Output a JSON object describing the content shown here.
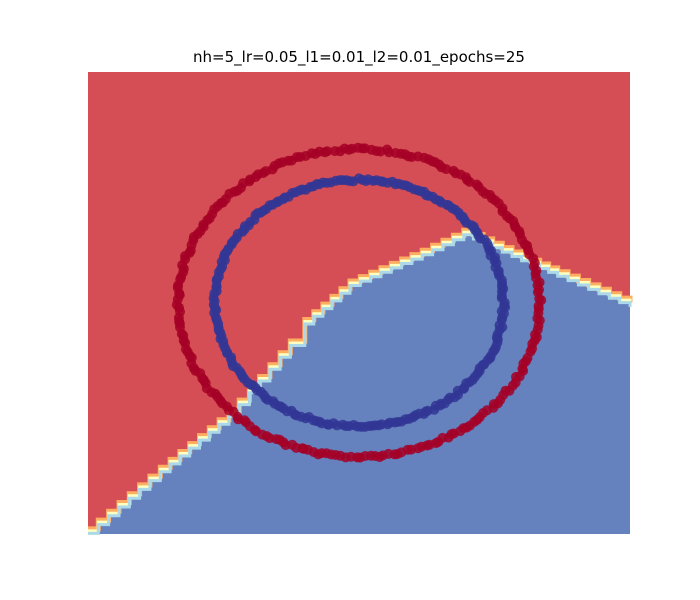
{
  "chart_data": {
    "type": "scatter",
    "title": "nh=5_lr=0.05_l1=0.01_l2=0.01_epochs=25",
    "xlabel": "",
    "ylabel": "",
    "axes_visible": false,
    "grid": false,
    "xlim": [
      -1.5,
      1.5
    ],
    "ylim": [
      -1.5,
      1.5
    ],
    "colors": {
      "region_positive": "#d64e55",
      "region_negative": "#6581be",
      "outer_points": "#a50026",
      "inner_points": "#313695",
      "boundary_band": [
        "#fdae61",
        "#ffffbf",
        "#abd9e9"
      ]
    },
    "decision_boundary": [
      [
        -1.5,
        -1.48
      ],
      [
        -1.1,
        -1.08
      ],
      [
        -0.72,
        -0.72
      ],
      [
        -0.38,
        -0.26
      ],
      [
        -0.3,
        -0.12
      ],
      [
        -0.05,
        0.13
      ],
      [
        0.35,
        0.33
      ],
      [
        0.58,
        0.46
      ],
      [
        0.9,
        0.29
      ],
      [
        1.1,
        0.19
      ],
      [
        1.5,
        -0.01
      ]
    ],
    "series": [
      {
        "name": "",
        "radius": 1.0,
        "color": "#a50026",
        "n_points": 240
      },
      {
        "name": "",
        "radius": 0.8,
        "color": "#313695",
        "n_points": 240
      }
    ]
  }
}
